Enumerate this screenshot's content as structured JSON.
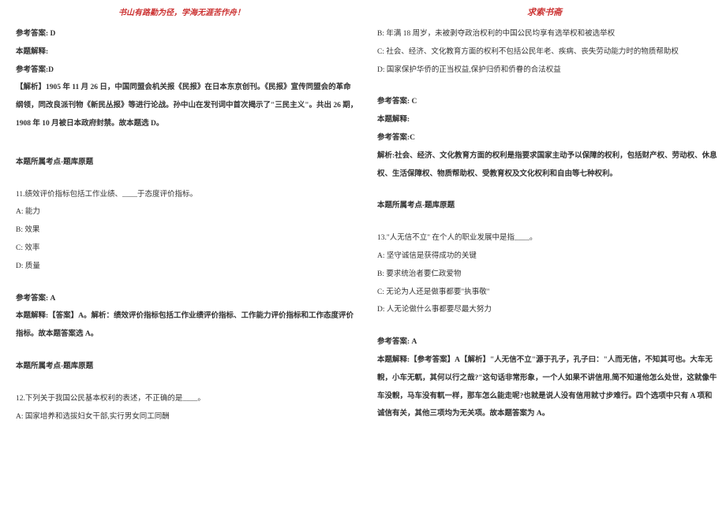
{
  "header": {
    "left": "书山有路勤为径，学海无涯苦作舟！",
    "right": "求索书斋"
  },
  "leftColumn": {
    "ans1_label": "参考答案: D",
    "explain_label": "本题解释:",
    "explain_ans": "参考答案:D",
    "explain_body1": "【解析】1905 年 11 月 26 日，中国同盟会机关报《民报》在日本东京创刊。《民报》宣传同盟会的革命",
    "explain_body2": "纲领，同改良派刊物《新民丛报》等进行论战。孙中山在发刊词中首次揭示了\"三民主义\"。共出 26 期，",
    "explain_body3": "1908 年 10 月被日本政府封禁。故本题选 D。",
    "topic_label": "本题所属考点-题库原题",
    "q11_stem": "11.绩效评价指标包括工作业绩、____于态度评价指标。",
    "q11_a": "A: 能力",
    "q11_b": "B: 效果",
    "q11_c": "C: 效率",
    "q11_d": "D: 质量",
    "q11_ans": "参考答案: A",
    "q11_explain1": "本题解释:【答案】A。解析：绩效评价指标包括工作业绩评价指标、工作能力评价指标和工作态度评价",
    "q11_explain2": "指标。故本题答案选 A。",
    "q11_topic": "本题所属考点-题库原题",
    "q12_stem": "12.下列关于我国公民基本权利的表述，不正确的是____。",
    "q12_a": "A:  国家培养和选拔妇女干部,实行男女同工同酬"
  },
  "rightColumn": {
    "q12_b": "B:  年满 18 周岁，未被剥夺政治权利的中国公民均享有选举权和被选举权",
    "q12_c": "C:  社会、经济、文化教育方面的权利不包括公民年老、疾病、丧失劳动能力时的物质帮助权",
    "q12_d": "D:  国家保护华侨的正当权益,保护归侨和侨眷的合法权益",
    "q12_ans": "参考答案: C",
    "q12_explain_label": "本题解释:",
    "q12_explain_ans": "参考答案:C",
    "q12_explain_body1": "解析:社会、经济、文化教育方面的权利是指要求国家主动予以保障的权利，包括财产权、劳动权、休息",
    "q12_explain_body2": "权、生活保障权、物质帮助权、受教育权及文化权利和自由等七种权利。",
    "q12_topic": "本题所属考点-题库原题",
    "q13_stem": "13.\"人无信不立\" 在个人的职业发展中是指____。",
    "q13_a": "A: 坚守诚信是获得成功的关键",
    "q13_b": "B: 要求统治者要仁政爱物",
    "q13_c": "C: 无论为人还是做事都要\"执事敬\"",
    "q13_d": "D: 人无论做什么事都要尽最大努力",
    "q13_ans": "参考答案: A",
    "q13_explain1": "本题解释:【参考答案】A【解析】\"人无信不立\"源于孔子，孔子曰：\"人而无信，不知其可也。大车无",
    "q13_explain2": "輗，小车无軏，其何以行之哉?\"这句话非常形象，一个人如果不讲信用,简不知道他怎么处世，这就像牛",
    "q13_explain3": "车没輗，马车没有軏一样，那车怎么能走呢?也就是说人没有信用就寸步难行。四个选项中只有 A 项和",
    "q13_explain4": "诚信有关，其他三项均为无关项。故本题答案为 A。"
  },
  "colors": {
    "text": "#333333",
    "accent": "#cc3333",
    "background": "#ffffff"
  },
  "typography": {
    "body_fontsize": 9.5,
    "header_fontsize": 10,
    "line_height": 2.4
  }
}
